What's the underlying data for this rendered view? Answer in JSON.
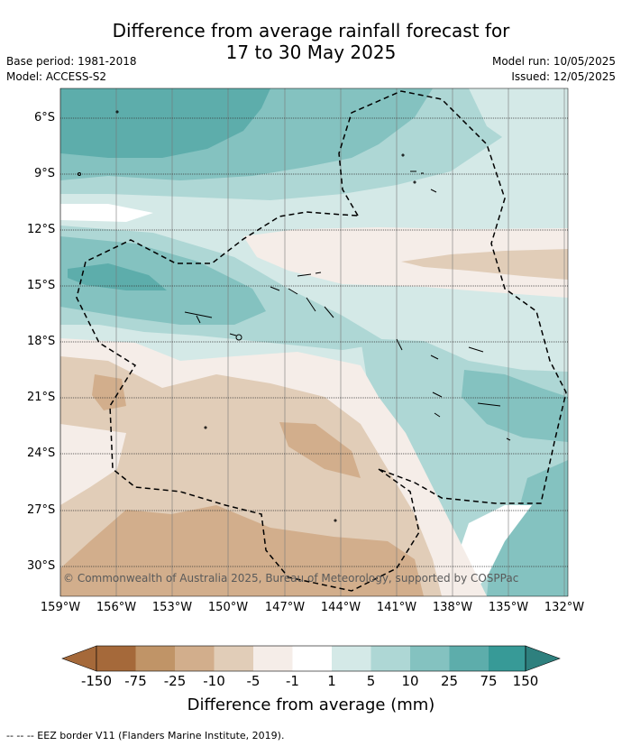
{
  "title_line1": "Difference from average rainfall forecast for",
  "title_line2": "17 to 30 May 2025",
  "meta": {
    "base_period": "Base period: 1981-2018",
    "model": "Model: ACCESS-S2",
    "model_run": "Model run: 10/05/2025",
    "issued": "Issued: 12/05/2025"
  },
  "map": {
    "lat_labels": [
      "6°S",
      "9°S",
      "12°S",
      "15°S",
      "18°S",
      "21°S",
      "24°S",
      "27°S",
      "30°S"
    ],
    "lon_labels": [
      "159°W",
      "156°W",
      "153°W",
      "150°W",
      "147°W",
      "144°W",
      "141°W",
      "138°W",
      "135°W",
      "132°W"
    ],
    "copyright": "© Commonwealth of Australia 2025, Bureau of Meteorology, supported by COSPPac",
    "eez_style": "dashed black"
  },
  "colorbar": {
    "labels": [
      "-150",
      "-75",
      "-25",
      "-10",
      "-5",
      "-1",
      "1",
      "5",
      "10",
      "25",
      "75",
      "150"
    ],
    "colors": [
      "#a5693a",
      "#c09467",
      "#d2ae8c",
      "#e1cdb8",
      "#f5ede8",
      "#ffffff",
      "#d4e9e7",
      "#aed7d5",
      "#84c2c0",
      "#5dadab",
      "#379a97",
      "#2e807e"
    ],
    "title": "Difference from average (mm)"
  },
  "footnote": "--  --  -- EEZ border V11 (Flanders Marine Institute, 2019)."
}
